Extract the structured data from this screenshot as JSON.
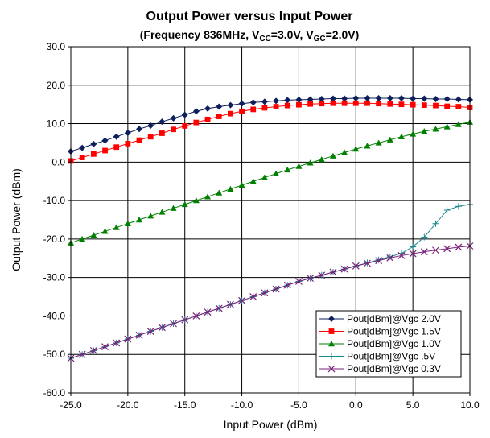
{
  "chart_data": {
    "type": "line",
    "title": "Output Power versus Input Power",
    "subtitle": {
      "prefix": "(Frequency 836MHz, V",
      "sub1": "CC",
      "mid": "=3.0V, V",
      "sub2": "GC",
      "suffix": "=2.0V)"
    },
    "xlabel": "Input Power (dBm)",
    "ylabel": "Output Power (dBm)",
    "xlim": [
      -25,
      10
    ],
    "ylim": [
      -60,
      30
    ],
    "xticks": [
      -25,
      -20,
      -15,
      -10,
      -5,
      0,
      5,
      10
    ],
    "yticks": [
      -60,
      -50,
      -40,
      -30,
      -20,
      -10,
      0,
      10,
      20,
      30
    ],
    "xtick_labels": [
      "-25.0",
      "-20.0",
      "-15.0",
      "-10.0",
      "-5.0",
      "0.0",
      "5.0",
      "10.0"
    ],
    "ytick_labels": [
      "-60.0",
      "-50.0",
      "-40.0",
      "-30.0",
      "-20.0",
      "-10.0",
      "0.0",
      "10.0",
      "20.0",
      "30.0"
    ],
    "grid": true,
    "legend_position": "bottom-right",
    "x": [
      -25,
      -24,
      -23,
      -22,
      -21,
      -20,
      -19,
      -18,
      -17,
      -16,
      -15,
      -14,
      -13,
      -12,
      -11,
      -10,
      -9,
      -8,
      -7,
      -6,
      -5,
      -4,
      -3,
      -2,
      -1,
      0,
      1,
      2,
      3,
      4,
      5,
      6,
      7,
      8,
      9,
      10
    ],
    "series": [
      {
        "name": "Pout[dBm]@Vgc 2.0V",
        "color": "#0d1f5c",
        "marker": "diamond",
        "values": [
          2.8,
          3.7,
          4.7,
          5.6,
          6.6,
          7.6,
          8.6,
          9.5,
          10.5,
          11.4,
          12.3,
          13.2,
          13.9,
          14.4,
          14.8,
          15.2,
          15.5,
          15.7,
          15.9,
          16.1,
          16.2,
          16.3,
          16.4,
          16.5,
          16.5,
          16.6,
          16.6,
          16.6,
          16.6,
          16.6,
          16.5,
          16.5,
          16.4,
          16.4,
          16.3,
          16.2
        ]
      },
      {
        "name": "Pout[dBm]@Vgc 1.5V",
        "color": "#ff0000",
        "marker": "square",
        "values": [
          0.3,
          1.2,
          2.1,
          3.0,
          3.9,
          4.8,
          5.7,
          6.6,
          7.5,
          8.5,
          9.4,
          10.3,
          11.1,
          11.9,
          12.6,
          13.2,
          13.7,
          14.1,
          14.4,
          14.7,
          14.9,
          15.1,
          15.2,
          15.3,
          15.3,
          15.3,
          15.3,
          15.2,
          15.1,
          15.0,
          14.9,
          14.8,
          14.7,
          14.5,
          14.4,
          14.2
        ]
      },
      {
        "name": "Pout[dBm]@Vgc 1.0V",
        "color": "#008000",
        "marker": "triangle",
        "values": [
          -21.0,
          -20.0,
          -19.0,
          -18.0,
          -17.0,
          -16.0,
          -15.0,
          -14.0,
          -13.0,
          -12.0,
          -11.0,
          -10.0,
          -9.0,
          -8.0,
          -7.0,
          -6.0,
          -5.0,
          -4.0,
          -3.0,
          -2.0,
          -1.1,
          -0.2,
          0.7,
          1.6,
          2.5,
          3.4,
          4.2,
          5.0,
          5.8,
          6.6,
          7.3,
          8.0,
          8.6,
          9.2,
          9.8,
          10.4
        ]
      },
      {
        "name": "Pout[dBm]@Vgc .5V",
        "color": "#1b8a8f",
        "marker": "plus",
        "values": [
          -51.0,
          -50.0,
          -49.0,
          -48.0,
          -47.0,
          -46.0,
          -45.0,
          -44.0,
          -43.0,
          -42.0,
          -41.0,
          -40.0,
          -39.0,
          -38.0,
          -37.0,
          -36.0,
          -35.0,
          -34.0,
          -33.0,
          -32.0,
          -31.0,
          -30.2,
          -29.4,
          -28.6,
          -27.8,
          -27.0,
          -26.2,
          -25.4,
          -24.6,
          -23.7,
          -22.0,
          -19.5,
          -16.0,
          -12.5,
          -11.5,
          -11.0
        ]
      },
      {
        "name": "Pout[dBm]@Vgc 0.3V",
        "color": "#7a1f7a",
        "marker": "x",
        "values": [
          -51.0,
          -50.0,
          -49.0,
          -48.0,
          -47.0,
          -46.0,
          -45.0,
          -44.0,
          -43.0,
          -42.0,
          -41.0,
          -40.0,
          -39.0,
          -38.0,
          -37.0,
          -36.0,
          -35.0,
          -34.0,
          -33.0,
          -32.0,
          -31.0,
          -30.2,
          -29.4,
          -28.6,
          -27.8,
          -27.0,
          -26.3,
          -25.6,
          -24.9,
          -24.3,
          -23.8,
          -23.3,
          -22.9,
          -22.5,
          -22.1,
          -21.8
        ]
      }
    ]
  }
}
